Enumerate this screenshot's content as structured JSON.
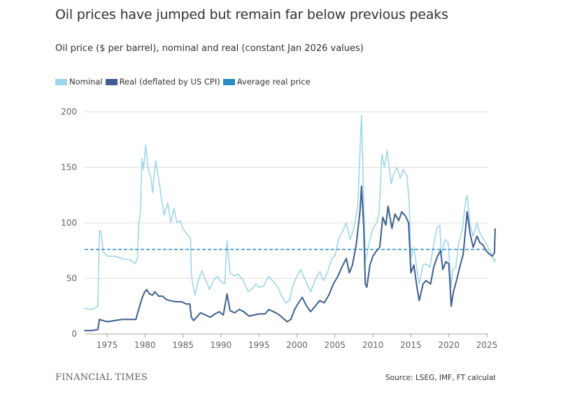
{
  "header": {
    "title": "Oil prices have jumped but remain far below previous peaks",
    "subtitle": "Oil price ($ per barrel), nominal and real (constant Jan 2026 values)"
  },
  "legend": [
    {
      "label": "Nominal",
      "color": "#9dd6ea"
    },
    {
      "label": "Real (deflated by US CPI)",
      "color": "#3d5f91"
    },
    {
      "label": "Average real price",
      "color": "#2b8cc4"
    }
  ],
  "footer": {
    "brand": "FINANCIAL TIMES",
    "source": "Source: LSEG, IMF, FT calculations"
  },
  "chart_data": {
    "type": "line",
    "title": "Oil prices have jumped but remain far below previous peaks",
    "subtitle": "Oil price ($ per barrel), nominal and real (constant Jan 2026 values)",
    "xlabel": "",
    "ylabel": "",
    "xlim": [
      1972,
      2026.2
    ],
    "ylim": [
      0,
      200
    ],
    "x_ticks": [
      1975,
      1980,
      1985,
      1990,
      1995,
      2000,
      2005,
      2010,
      2015,
      2020,
      2025
    ],
    "y_ticks": [
      0,
      50,
      100,
      150,
      200
    ],
    "grid": true,
    "legend_position": "top-left",
    "average_real_price": 76,
    "series": [
      {
        "name": "Nominal",
        "color": "#9dd6ea",
        "points": [
          [
            1972.0,
            23
          ],
          [
            1973.0,
            22
          ],
          [
            1973.8,
            25
          ],
          [
            1974.0,
            93
          ],
          [
            1974.2,
            92
          ],
          [
            1974.5,
            74
          ],
          [
            1975.0,
            70
          ],
          [
            1976.0,
            70
          ],
          [
            1976.5,
            69
          ],
          [
            1977.0,
            68
          ],
          [
            1977.5,
            67
          ],
          [
            1978.0,
            67
          ],
          [
            1978.7,
            63
          ],
          [
            1979.0,
            68
          ],
          [
            1979.2,
            100
          ],
          [
            1979.4,
            110
          ],
          [
            1979.6,
            158
          ],
          [
            1979.8,
            148
          ],
          [
            1980.1,
            170
          ],
          [
            1980.4,
            150
          ],
          [
            1980.8,
            140
          ],
          [
            1981.0,
            127
          ],
          [
            1981.4,
            156
          ],
          [
            1981.8,
            140
          ],
          [
            1982.2,
            120
          ],
          [
            1982.5,
            107
          ],
          [
            1983.0,
            118
          ],
          [
            1983.4,
            100
          ],
          [
            1983.8,
            113
          ],
          [
            1984.2,
            100
          ],
          [
            1984.6,
            102
          ],
          [
            1985.0,
            95
          ],
          [
            1985.5,
            90
          ],
          [
            1986.0,
            86
          ],
          [
            1986.1,
            55
          ],
          [
            1986.3,
            44
          ],
          [
            1986.6,
            35
          ],
          [
            1987.0,
            48
          ],
          [
            1987.5,
            57
          ],
          [
            1988.0,
            48
          ],
          [
            1988.5,
            40
          ],
          [
            1989.0,
            48
          ],
          [
            1989.5,
            52
          ],
          [
            1990.0,
            47
          ],
          [
            1990.5,
            45
          ],
          [
            1990.8,
            84
          ],
          [
            1991.2,
            55
          ],
          [
            1991.8,
            52
          ],
          [
            1992.3,
            54
          ],
          [
            1993.0,
            47
          ],
          [
            1993.6,
            38
          ],
          [
            1994.0,
            40
          ],
          [
            1994.6,
            45
          ],
          [
            1995.0,
            42
          ],
          [
            1995.6,
            43
          ],
          [
            1996.3,
            52
          ],
          [
            1996.8,
            48
          ],
          [
            1997.4,
            43
          ],
          [
            1998.0,
            34
          ],
          [
            1998.5,
            28
          ],
          [
            1999.0,
            30
          ],
          [
            1999.5,
            44
          ],
          [
            2000.0,
            52
          ],
          [
            2000.5,
            58
          ],
          [
            2001.0,
            50
          ],
          [
            2001.8,
            38
          ],
          [
            2002.5,
            50
          ],
          [
            2003.0,
            56
          ],
          [
            2003.5,
            48
          ],
          [
            2004.0,
            55
          ],
          [
            2004.6,
            68
          ],
          [
            2005.0,
            70
          ],
          [
            2005.6,
            88
          ],
          [
            2006.0,
            92
          ],
          [
            2006.5,
            100
          ],
          [
            2007.0,
            85
          ],
          [
            2007.5,
            95
          ],
          [
            2008.0,
            115
          ],
          [
            2008.5,
            197
          ],
          [
            2008.9,
            90
          ],
          [
            2009.0,
            65
          ],
          [
            2009.5,
            82
          ],
          [
            2010.0,
            95
          ],
          [
            2010.5,
            100
          ],
          [
            2010.8,
            108
          ],
          [
            2011.2,
            162
          ],
          [
            2011.5,
            150
          ],
          [
            2011.9,
            165
          ],
          [
            2012.4,
            135
          ],
          [
            2012.8,
            145
          ],
          [
            2013.2,
            150
          ],
          [
            2013.6,
            140
          ],
          [
            2014.0,
            148
          ],
          [
            2014.5,
            142
          ],
          [
            2014.8,
            115
          ],
          [
            2015.0,
            68
          ],
          [
            2015.4,
            78
          ],
          [
            2015.8,
            58
          ],
          [
            2016.1,
            45
          ],
          [
            2016.6,
            62
          ],
          [
            2017.0,
            63
          ],
          [
            2017.5,
            60
          ],
          [
            2018.0,
            80
          ],
          [
            2018.4,
            95
          ],
          [
            2018.8,
            98
          ],
          [
            2019.0,
            72
          ],
          [
            2019.5,
            85
          ],
          [
            2019.9,
            82
          ],
          [
            2020.3,
            42
          ],
          [
            2020.5,
            58
          ],
          [
            2020.9,
            60
          ],
          [
            2021.3,
            82
          ],
          [
            2021.8,
            95
          ],
          [
            2022.2,
            120
          ],
          [
            2022.4,
            125
          ],
          [
            2022.8,
            98
          ],
          [
            2023.2,
            88
          ],
          [
            2023.7,
            100
          ],
          [
            2024.0,
            92
          ],
          [
            2024.5,
            86
          ],
          [
            2024.9,
            82
          ],
          [
            2025.3,
            76
          ],
          [
            2025.7,
            70
          ],
          [
            2026.0,
            65
          ],
          [
            2026.1,
            68
          ]
        ]
      },
      {
        "name": "Real (deflated by US CPI)",
        "color": "#3d5f91",
        "points": [
          [
            1972.0,
            3
          ],
          [
            1973.0,
            3
          ],
          [
            1973.8,
            4
          ],
          [
            1974.0,
            13
          ],
          [
            1974.5,
            12
          ],
          [
            1975.0,
            11
          ],
          [
            1976.0,
            12
          ],
          [
            1977.0,
            13
          ],
          [
            1978.0,
            13
          ],
          [
            1978.8,
            13
          ],
          [
            1979.0,
            18
          ],
          [
            1979.3,
            25
          ],
          [
            1979.6,
            32
          ],
          [
            1979.9,
            37
          ],
          [
            1980.2,
            40
          ],
          [
            1980.6,
            36
          ],
          [
            1981.0,
            35
          ],
          [
            1981.3,
            38
          ],
          [
            1981.8,
            34
          ],
          [
            1982.3,
            34
          ],
          [
            1982.8,
            31
          ],
          [
            1983.3,
            30
          ],
          [
            1984.0,
            29
          ],
          [
            1984.8,
            29
          ],
          [
            1985.4,
            27
          ],
          [
            1985.9,
            27
          ],
          [
            1986.1,
            15
          ],
          [
            1986.4,
            12
          ],
          [
            1986.8,
            15
          ],
          [
            1987.3,
            19
          ],
          [
            1988.0,
            17
          ],
          [
            1988.6,
            15
          ],
          [
            1989.2,
            18
          ],
          [
            1989.8,
            20
          ],
          [
            1990.3,
            17
          ],
          [
            1990.8,
            36
          ],
          [
            1991.2,
            21
          ],
          [
            1991.8,
            19
          ],
          [
            1992.4,
            22
          ],
          [
            1993.0,
            20
          ],
          [
            1993.7,
            16
          ],
          [
            1994.3,
            17
          ],
          [
            1995.0,
            18
          ],
          [
            1995.8,
            18
          ],
          [
            1996.3,
            22
          ],
          [
            1996.9,
            20
          ],
          [
            1997.5,
            18
          ],
          [
            1998.2,
            14
          ],
          [
            1998.7,
            11
          ],
          [
            1999.2,
            13
          ],
          [
            1999.7,
            22
          ],
          [
            2000.2,
            28
          ],
          [
            2000.7,
            33
          ],
          [
            2001.2,
            26
          ],
          [
            2001.8,
            20
          ],
          [
            2002.4,
            25
          ],
          [
            2003.0,
            30
          ],
          [
            2003.6,
            28
          ],
          [
            2004.2,
            35
          ],
          [
            2004.8,
            45
          ],
          [
            2005.4,
            52
          ],
          [
            2005.9,
            60
          ],
          [
            2006.5,
            68
          ],
          [
            2006.9,
            55
          ],
          [
            2007.3,
            62
          ],
          [
            2007.8,
            80
          ],
          [
            2008.3,
            110
          ],
          [
            2008.5,
            133
          ],
          [
            2008.8,
            95
          ],
          [
            2009.0,
            45
          ],
          [
            2009.2,
            42
          ],
          [
            2009.6,
            62
          ],
          [
            2010.0,
            70
          ],
          [
            2010.5,
            75
          ],
          [
            2010.9,
            78
          ],
          [
            2011.3,
            105
          ],
          [
            2011.7,
            98
          ],
          [
            2012.0,
            115
          ],
          [
            2012.5,
            95
          ],
          [
            2012.9,
            108
          ],
          [
            2013.4,
            102
          ],
          [
            2013.8,
            110
          ],
          [
            2014.3,
            106
          ],
          [
            2014.7,
            100
          ],
          [
            2015.0,
            55
          ],
          [
            2015.4,
            62
          ],
          [
            2015.8,
            42
          ],
          [
            2016.1,
            30
          ],
          [
            2016.6,
            45
          ],
          [
            2017.0,
            48
          ],
          [
            2017.6,
            45
          ],
          [
            2018.0,
            60
          ],
          [
            2018.5,
            70
          ],
          [
            2018.9,
            75
          ],
          [
            2019.2,
            58
          ],
          [
            2019.6,
            65
          ],
          [
            2020.0,
            63
          ],
          [
            2020.3,
            25
          ],
          [
            2020.6,
            38
          ],
          [
            2021.0,
            48
          ],
          [
            2021.5,
            62
          ],
          [
            2021.9,
            72
          ],
          [
            2022.2,
            95
          ],
          [
            2022.4,
            110
          ],
          [
            2022.8,
            90
          ],
          [
            2023.2,
            78
          ],
          [
            2023.7,
            88
          ],
          [
            2024.1,
            82
          ],
          [
            2024.5,
            80
          ],
          [
            2024.9,
            75
          ],
          [
            2025.3,
            72
          ],
          [
            2025.7,
            70
          ],
          [
            2026.0,
            73
          ],
          [
            2026.1,
            95
          ]
        ]
      }
    ]
  }
}
